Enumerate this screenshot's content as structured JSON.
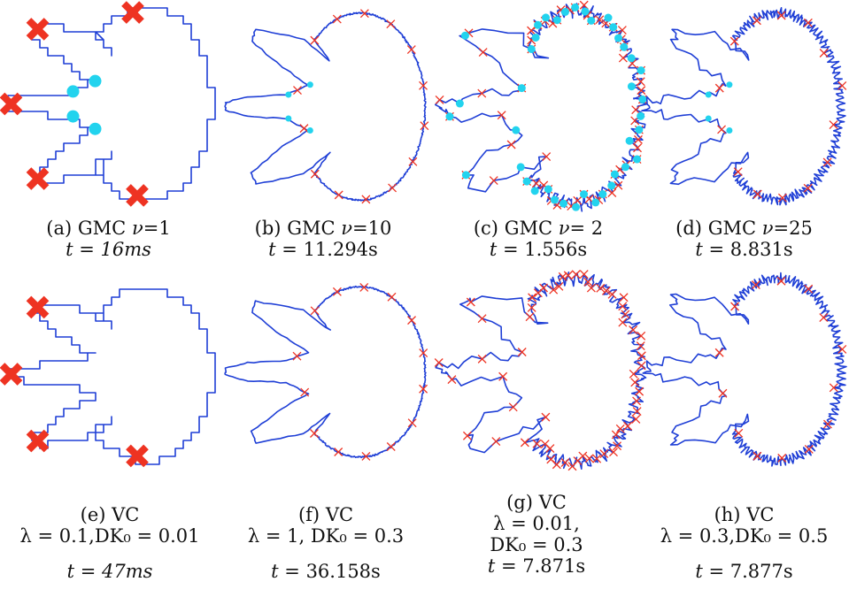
{
  "figure": {
    "panels": [
      {
        "id": "a",
        "label": "(a)",
        "method": "GMC",
        "param_sym": "ν",
        "param_eq": "=1",
        "time_sym": "t",
        "time_val": "= 16ms",
        "style": "stair",
        "big_marks": true,
        "cyan": true
      },
      {
        "id": "b",
        "label": "(b)",
        "method": "GMC",
        "param_sym": "ν",
        "param_eq": "=10",
        "time_sym": "t",
        "time_val": "= 11.294s",
        "style": "smooth",
        "big_marks": false,
        "cyan": true
      },
      {
        "id": "c",
        "label": "(c)",
        "method": "GMC",
        "param_sym": "ν",
        "param_eq": "= 2",
        "time_sym": "t",
        "time_val": "= 1.556s",
        "style": "zigzag",
        "big_marks": false,
        "cyan": true
      },
      {
        "id": "d",
        "label": "(d)",
        "method": "GMC",
        "param_sym": "ν",
        "param_eq": "=25",
        "time_sym": "t",
        "time_val": "= 8.831s",
        "style": "wiggle",
        "big_marks": false,
        "cyan": true
      },
      {
        "id": "e",
        "label": "(e)",
        "method": "VC",
        "param_line": "λ = 0.1,DK₀ = 0.01",
        "time_sym": "t",
        "time_val": "= 47ms",
        "style": "stair",
        "big_marks": true,
        "cyan": false
      },
      {
        "id": "f",
        "label": "(f)",
        "method": "VC",
        "param_line": "λ = 1, DK₀ = 0.3",
        "time_sym": "t",
        "time_val": "= 36.158s",
        "style": "smooth",
        "big_marks": false,
        "cyan": false
      },
      {
        "id": "g",
        "label": "(g)",
        "method": "VC",
        "param_line": "λ = 0.01,",
        "param_line2": "DK₀ = 0.3",
        "time_sym": "t",
        "time_val": "= 7.871s",
        "style": "zigzag",
        "big_marks": false,
        "cyan": false
      },
      {
        "id": "h",
        "label": "(h)",
        "method": "VC",
        "param_line": "λ = 0.3,DK₀ = 0.5",
        "time_sym": "t",
        "time_val": "= 7.877s",
        "style": "wiggle",
        "big_marks": false,
        "cyan": false
      }
    ],
    "colors": {
      "contour": "#1f3fd6",
      "marker": "#ee3322",
      "dot": "#22d3ee"
    }
  }
}
